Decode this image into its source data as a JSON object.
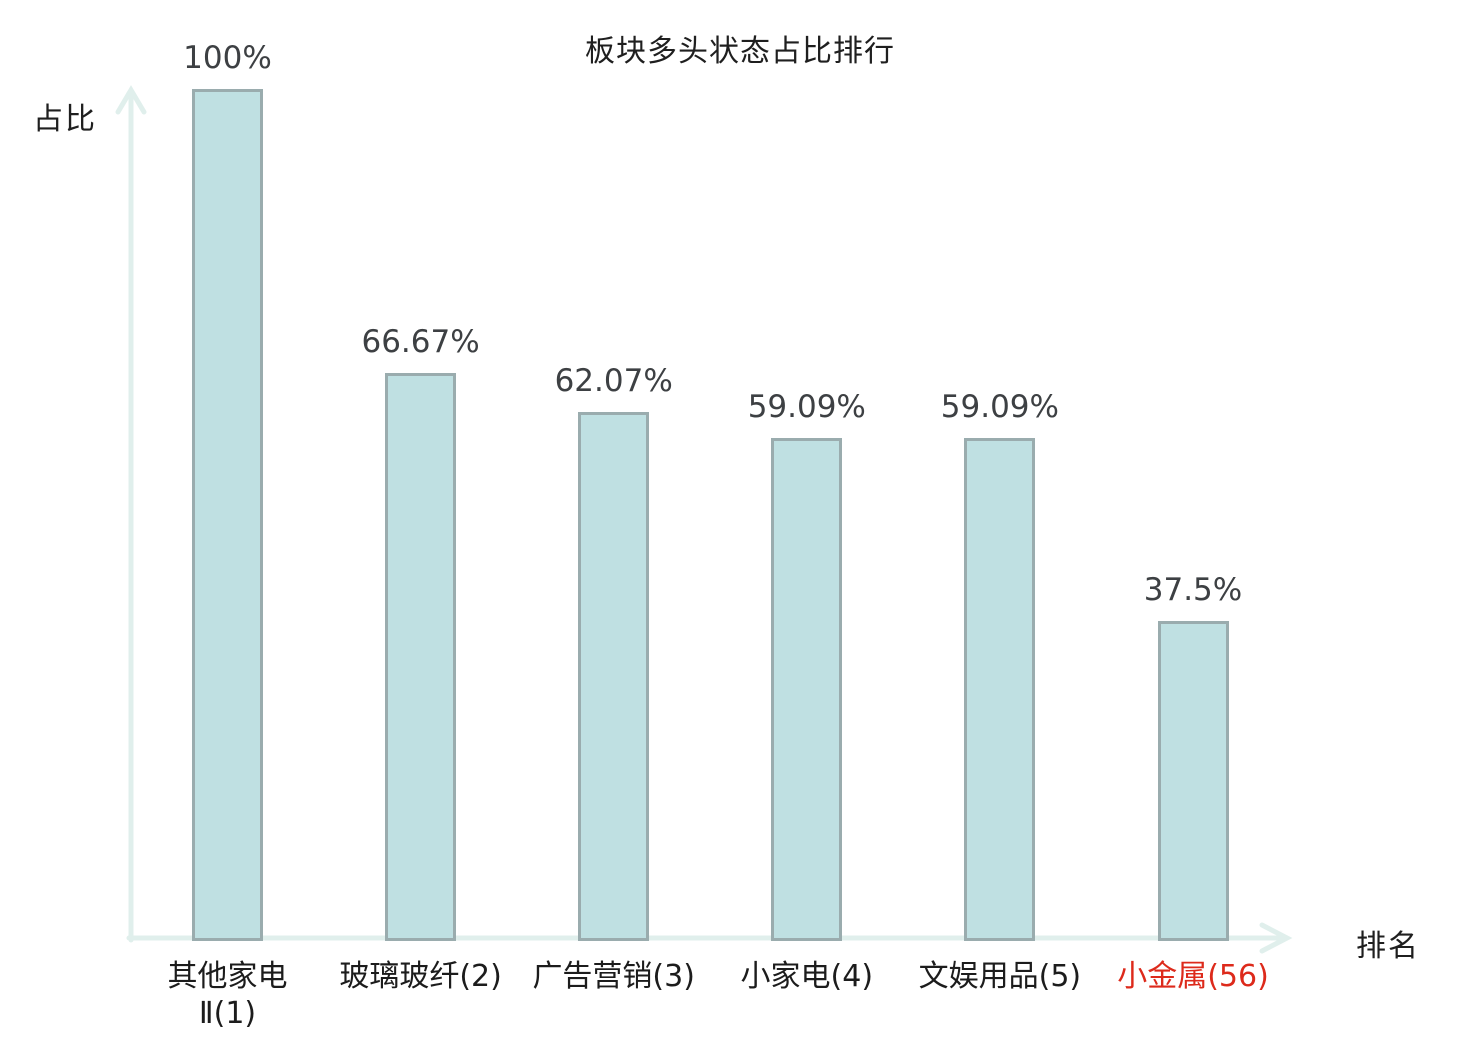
{
  "chart_data": {
    "type": "bar",
    "title": "板块多头状态占比排行",
    "xlabel": "排名",
    "ylabel": "占比",
    "ylim": [
      0,
      100
    ],
    "grid": false,
    "legend": null,
    "categories": [
      "其他家电Ⅱ(1)",
      "玻璃玻纤(2)",
      "广告营销(3)",
      "小家电(4)",
      "文娱用品(5)",
      "小金属(56)"
    ],
    "values": [
      100,
      66.67,
      62.07,
      59.09,
      59.09,
      37.5
    ],
    "bars": [
      {
        "category_lines": [
          "其他家电",
          "Ⅱ(1)"
        ],
        "value": 100,
        "value_label": "100%",
        "highlight": false
      },
      {
        "category_lines": [
          "玻璃玻纤(2)"
        ],
        "value": 66.67,
        "value_label": "66.67%",
        "highlight": false
      },
      {
        "category_lines": [
          "广告营销(3)"
        ],
        "value": 62.07,
        "value_label": "62.07%",
        "highlight": false
      },
      {
        "category_lines": [
          "小家电(4)"
        ],
        "value": 59.09,
        "value_label": "59.09%",
        "highlight": false
      },
      {
        "category_lines": [
          "文娱用品(5)"
        ],
        "value": 59.09,
        "value_label": "59.09%",
        "highlight": false
      },
      {
        "category_lines": [
          "小金属(56)"
        ],
        "value": 37.5,
        "value_label": "37.5%",
        "highlight": true
      }
    ],
    "colors": {
      "bar_fill": "#bfe0e2",
      "bar_border": "#9aacae",
      "axis": "#e0efec",
      "title_text": "#1f1f1f",
      "value_text": "#3d4043",
      "category_text": "#1c1c1c",
      "highlight_text": "#dd2a1b",
      "background": "#ffffff"
    }
  }
}
